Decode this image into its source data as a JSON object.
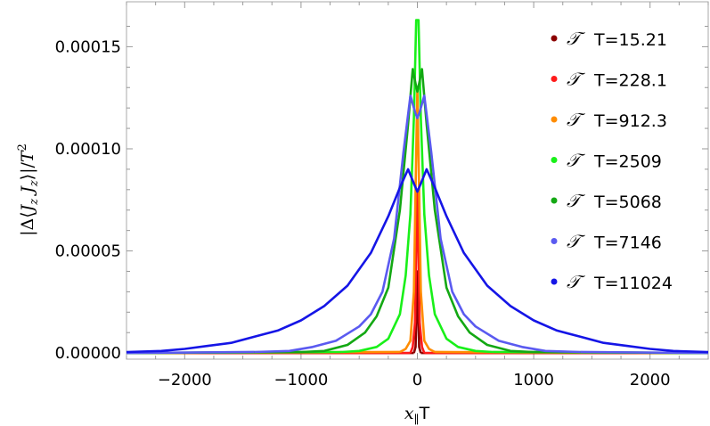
{
  "chart_data": {
    "type": "line",
    "xlabel": "x∥T",
    "ylabel": "|Δ⟨J_z J_z⟩|/T²",
    "xlim": [
      -2500,
      2500
    ],
    "ylim": [
      -3e-06,
      0.000172
    ],
    "x_ticks": [
      -2000,
      -1000,
      0,
      1000,
      2000
    ],
    "x_tick_labels": [
      "−2000",
      "−1000",
      "0",
      "1000",
      "2000"
    ],
    "y_ticks": [
      0,
      5e-05,
      0.0001,
      0.00015
    ],
    "y_tick_labels": [
      "0.00000",
      "0.00005",
      "0.00010",
      "0.00015"
    ],
    "grid": false,
    "legend_position": "top-right",
    "legend_symbol": "𝒯",
    "series": [
      {
        "name": "T=15.21",
        "color": "#8b0000",
        "x": [
          -30,
          -15,
          -5,
          0,
          5,
          15,
          30
        ],
        "y": [
          0,
          3e-06,
          2.5e-05,
          4e-05,
          2.5e-05,
          3e-06,
          0
        ]
      },
      {
        "name": "T=228.1",
        "color": "#ff1a1a",
        "x": [
          -60,
          -40,
          -20,
          -10,
          0,
          10,
          20,
          40,
          60
        ],
        "y": [
          0,
          3e-06,
          1.5e-05,
          5e-05,
          8e-05,
          5e-05,
          1.5e-05,
          3e-06,
          0
        ]
      },
      {
        "name": "T=912.3",
        "color": "#ff8c00",
        "x": [
          -150,
          -100,
          -60,
          -30,
          -15,
          0,
          15,
          30,
          60,
          100,
          150
        ],
        "y": [
          5e-07,
          2e-06,
          6e-06,
          3e-05,
          8e-05,
          0.00013,
          8e-05,
          3e-05,
          6e-06,
          2e-06,
          5e-07
        ]
      },
      {
        "name": "T=2509",
        "color": "#19f019",
        "x": [
          -650,
          -500,
          -350,
          -250,
          -150,
          -100,
          -60,
          -30,
          -10,
          0,
          10,
          30,
          60,
          100,
          150,
          250,
          350,
          500,
          650
        ],
        "y": [
          5e-07,
          1e-06,
          3e-06,
          7e-06,
          1.9e-05,
          3.8e-05,
          6.8e-05,
          0.000115,
          0.000163,
          0.000163,
          0.000163,
          0.000115,
          6.8e-05,
          3.8e-05,
          1.9e-05,
          7e-06,
          3e-06,
          1e-06,
          5e-07
        ]
      },
      {
        "name": "T=5068",
        "color": "#13a813",
        "x": [
          -1000,
          -800,
          -600,
          -450,
          -350,
          -250,
          -150,
          -80,
          -40,
          -15,
          0,
          15,
          40,
          80,
          150,
          250,
          350,
          450,
          600,
          800,
          1000
        ],
        "y": [
          5e-07,
          1e-06,
          4e-06,
          1e-05,
          1.8e-05,
          3.2e-05,
          7e-05,
          0.000112,
          0.000139,
          0.000132,
          0.000128,
          0.000132,
          0.000139,
          0.000112,
          7e-05,
          3.2e-05,
          1.8e-05,
          1e-05,
          4e-06,
          1e-06,
          5e-07
        ]
      },
      {
        "name": "T=7146",
        "color": "#5a5af0",
        "x": [
          -1400,
          -1100,
          -900,
          -700,
          -500,
          -400,
          -300,
          -200,
          -120,
          -60,
          -20,
          0,
          20,
          60,
          120,
          200,
          300,
          400,
          500,
          700,
          900,
          1100,
          1400
        ],
        "y": [
          5e-07,
          1e-06,
          3e-06,
          6e-06,
          1.3e-05,
          1.9e-05,
          3e-05,
          5.6e-05,
          9.8e-05,
          0.000126,
          0.000118,
          0.000115,
          0.000118,
          0.000126,
          9.8e-05,
          5.6e-05,
          3e-05,
          1.9e-05,
          1.3e-05,
          6e-06,
          3e-06,
          1e-06,
          5e-07
        ]
      },
      {
        "name": "T=11024",
        "color": "#1515e6",
        "x": [
          -2500,
          -2200,
          -2000,
          -1800,
          -1600,
          -1400,
          -1200,
          -1000,
          -800,
          -600,
          -400,
          -250,
          -150,
          -80,
          -30,
          0,
          30,
          80,
          150,
          250,
          400,
          600,
          800,
          1000,
          1200,
          1400,
          1600,
          1800,
          2000,
          2200,
          2500
        ],
        "y": [
          5e-07,
          1e-06,
          2e-06,
          3.5e-06,
          5e-06,
          8e-06,
          1.1e-05,
          1.6e-05,
          2.3e-05,
          3.3e-05,
          4.9e-05,
          6.7e-05,
          8.1e-05,
          9e-05,
          8.3e-05,
          7.9e-05,
          8.3e-05,
          9e-05,
          8.1e-05,
          6.7e-05,
          4.9e-05,
          3.3e-05,
          2.3e-05,
          1.6e-05,
          1.1e-05,
          8e-06,
          5e-06,
          3.5e-06,
          2e-06,
          1e-06,
          5e-07
        ]
      }
    ]
  }
}
